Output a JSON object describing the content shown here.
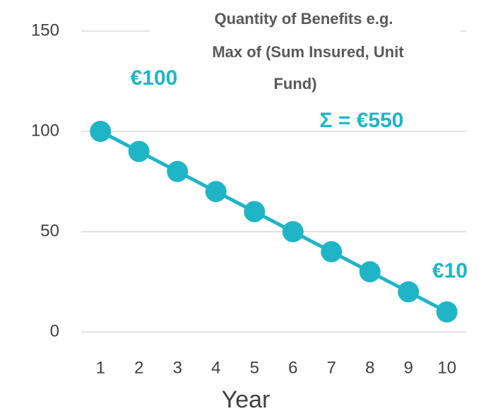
{
  "chart_data": {
    "type": "line",
    "title": [
      "Quantity of Benefits  e.g.",
      "Max of (Sum Insured, Unit",
      "Fund)"
    ],
    "x_label": "Year",
    "annotations": [
      "€100",
      "Σ = €550",
      "€10"
    ],
    "categories": [
      "1",
      "2",
      "3",
      "4",
      "5",
      "6",
      "7",
      "8",
      "9",
      "10"
    ],
    "series": [
      {
        "name": "Quantity of Benefits",
        "color": "#1fb5c7",
        "values": [
          100,
          90,
          80,
          70,
          60,
          50,
          40,
          30,
          20,
          10
        ]
      }
    ],
    "ylim": [
      0,
      150
    ],
    "yticks": [
      0,
      50,
      100,
      150
    ],
    "grid": true
  }
}
